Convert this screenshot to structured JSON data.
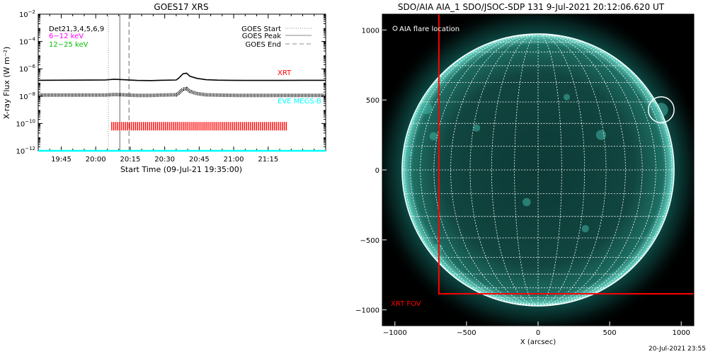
{
  "chart_data": [
    {
      "type": "line",
      "title": "GOES17 XRS",
      "xlabel": "Start Time (09-Jul-21 19:35:00)",
      "ylabel": "X-ray Flux (W m⁻²)",
      "y_scale": "log",
      "ylim_exponents": [
        -12,
        -2
      ],
      "y_tick_exponents": [
        -12,
        -10,
        -8,
        -6,
        -4,
        -2
      ],
      "x_range_min": [
        35,
        160
      ],
      "x_ticks": [
        {
          "label": "19:45",
          "min": 45
        },
        {
          "label": "20:00",
          "min": 60
        },
        {
          "label": "20:15",
          "min": 75
        },
        {
          "label": "20:30",
          "min": 90
        },
        {
          "label": "20:45",
          "min": 105
        },
        {
          "label": "21:00",
          "min": 120
        },
        {
          "label": "21:15",
          "min": 135
        }
      ],
      "legend_left": {
        "det_label": "Det21,3,4,5,6,9",
        "items": [
          {
            "label": "6−12 keV",
            "color": "#ff00ff"
          },
          {
            "label": "12−25 keV",
            "color": "#00c000"
          }
        ]
      },
      "legend_right": [
        {
          "label": "GOES Start",
          "style": "dotted"
        },
        {
          "label": "GOES Peak",
          "style": "solid"
        },
        {
          "label": "GOES End",
          "style": "dashed"
        }
      ],
      "markers_min": {
        "start": 65.5,
        "peak": 70.5,
        "end": 74.5
      },
      "series": [
        {
          "name": "XRT",
          "color": "#ff0000",
          "x_min": [
            35,
            64,
            68,
            72,
            78,
            84,
            88,
            95,
            96,
            98,
            99.5,
            101,
            104,
            108,
            113,
            118,
            125,
            132,
            140,
            150,
            160
          ],
          "log_flux": [
            -6.84,
            -6.82,
            -6.76,
            -6.8,
            -6.85,
            -6.86,
            -6.84,
            -6.82,
            -6.7,
            -6.36,
            -6.32,
            -6.55,
            -6.7,
            -6.8,
            -6.83,
            -6.84,
            -6.85,
            -6.85,
            -6.85,
            -6.84,
            -6.84
          ]
        },
        {
          "name": "EVE MEGS-B",
          "color": "#00ffff",
          "x_min": [
            35,
            160
          ],
          "log_flux": [
            -12,
            -12
          ]
        }
      ],
      "lower_curve": {
        "x_min": [
          35,
          64,
          68,
          72,
          78,
          84,
          88,
          95,
          96,
          98,
          99.5,
          101,
          104,
          108,
          113,
          118,
          125,
          132,
          140,
          150,
          160
        ],
        "log_flux": [
          -7.92,
          -7.92,
          -7.88,
          -7.9,
          -7.95,
          -7.95,
          -7.92,
          -7.9,
          -7.8,
          -7.48,
          -7.45,
          -7.65,
          -7.82,
          -7.9,
          -7.92,
          -7.94,
          -7.95,
          -7.95,
          -7.95,
          -7.95,
          -7.95
        ]
      },
      "xrt_obs_band": {
        "start_min": 67,
        "end_min": 143.5,
        "log_flux": -10.2,
        "color": "#ff0000"
      }
    },
    {
      "type": "image",
      "title": "SDO/AIA AIA_1 SDO/JSOC-SDP 131  9-Jul-2021 20:12:06.620 UT",
      "xlabel": "X (arcsec)",
      "ylabel": "",
      "x_ticks": [
        -1000,
        -500,
        0,
        500,
        1000
      ],
      "y_ticks": [
        1000,
        500,
        0,
        -500,
        -1000
      ],
      "xlim": [
        -1088,
        1088
      ],
      "ylim": [
        -1113,
        1113
      ],
      "solar_radius_arcsec": 950,
      "grid_spacing_deg": 10,
      "legend_label": "AIA flare location",
      "flare_location": {
        "x": 860,
        "y": 430,
        "radius": 90
      },
      "xrt_fov": {
        "label": "XRT FOV",
        "x_range": [
          -693,
          1108
        ],
        "y_range": [
          -885,
          1130
        ],
        "color": "#ff0000"
      }
    }
  ],
  "footer": {
    "timestamp": "20-Jul-2021 23:55"
  }
}
